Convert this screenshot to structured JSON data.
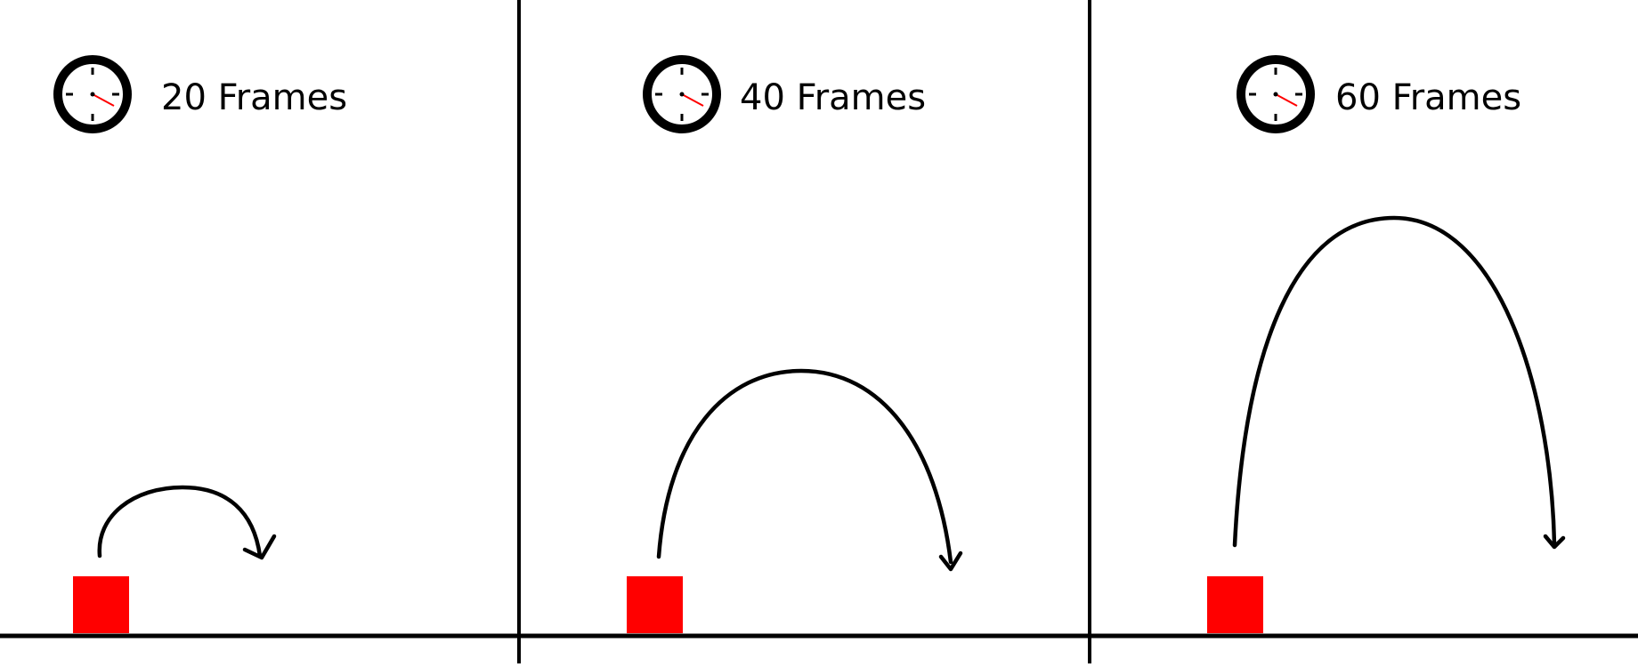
{
  "panels": [
    {
      "label": "20 Frames",
      "icon": "clock-icon"
    },
    {
      "label": "40 Frames",
      "icon": "clock-icon"
    },
    {
      "label": "60 Frames",
      "icon": "clock-icon"
    }
  ],
  "colors": {
    "line": "#000000",
    "block": "#ff0000",
    "clock_hand_second": "#ff0000",
    "background": "#ffffff"
  }
}
